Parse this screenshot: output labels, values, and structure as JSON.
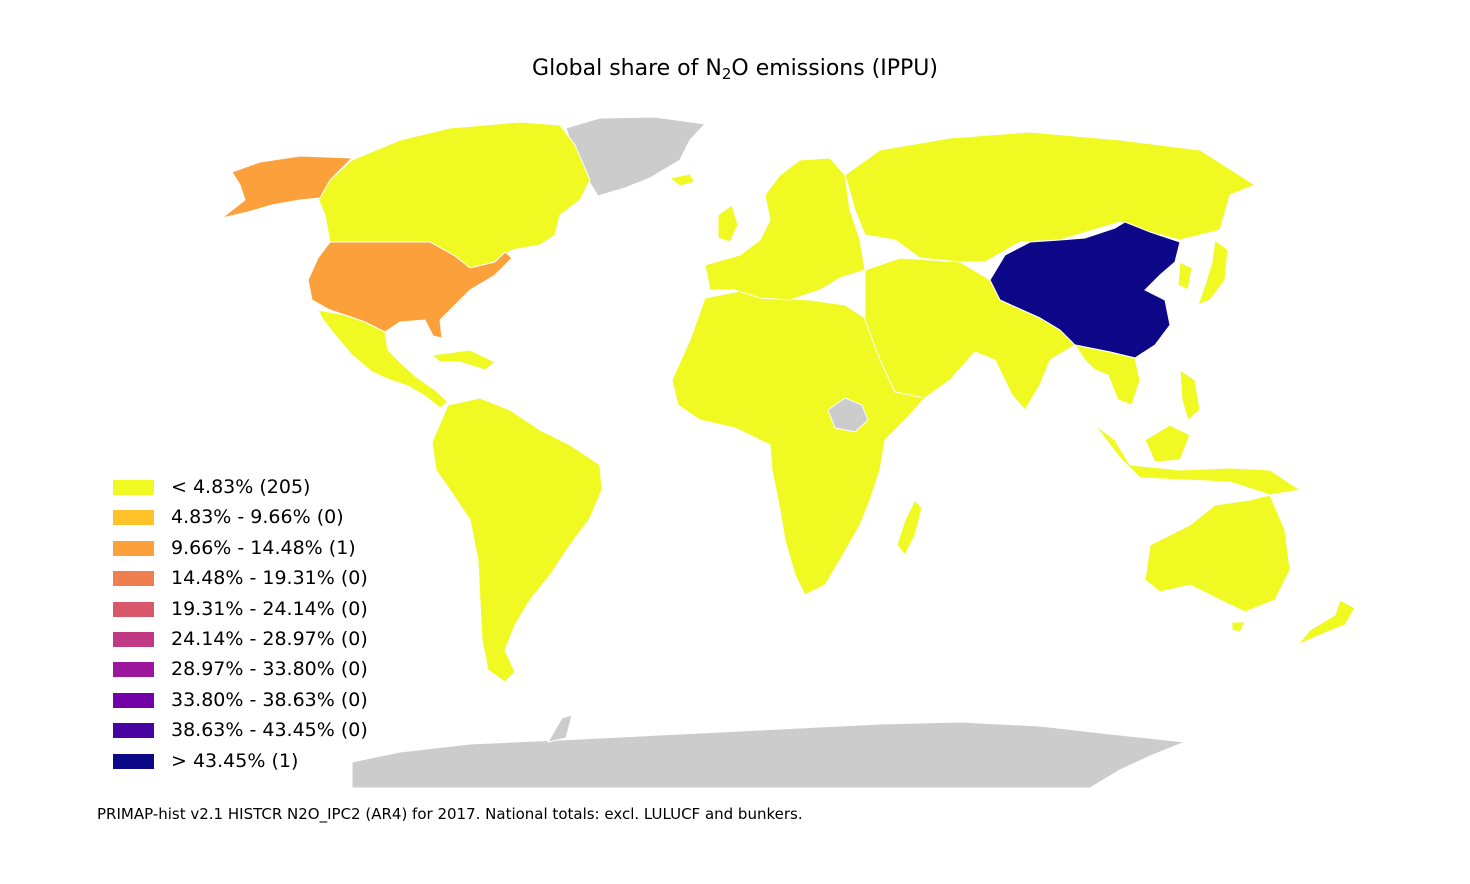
{
  "title": {
    "prefix": "Global share of N",
    "subscript": "2",
    "suffix": "O emissions (IPPU)"
  },
  "legend": [
    {
      "label": "< 4.83% (205)",
      "color": "#f0f921"
    },
    {
      "label": "4.83% - 9.66% (0)",
      "color": "#fdc328"
    },
    {
      "label": "9.66% - 14.48% (1)",
      "color": "#fca03c"
    },
    {
      "label": "14.48% - 19.31% (0)",
      "color": "#f07f4f"
    },
    {
      "label": "19.31% - 24.14% (0)",
      "color": "#d8576b"
    },
    {
      "label": "24.14% - 28.97% (0)",
      "color": "#bf3984"
    },
    {
      "label": "28.97% - 33.80% (0)",
      "color": "#9c179e"
    },
    {
      "label": "33.80% - 38.63% (0)",
      "color": "#7201a8"
    },
    {
      "label": "38.63% - 43.45% (0)",
      "color": "#4903a0"
    },
    {
      "label": "> 43.45% (1)",
      "color": "#0d0887"
    }
  ],
  "map_colors": {
    "low": "#f0f921",
    "usa": "#fca03c",
    "china": "#0d0887",
    "no_data": "#cccccc",
    "border": "#ffffff"
  },
  "source_note": "PRIMAP-hist v2.1 HISTCR N2O_IPC2 (AR4) for 2017. National totals: excl. LULUCF and bunkers."
}
